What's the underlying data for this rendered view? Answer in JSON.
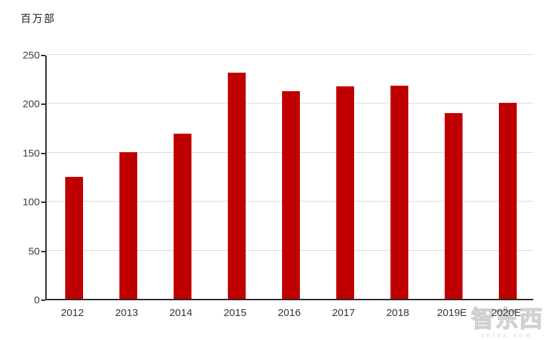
{
  "chart": {
    "unit_label": "百万部",
    "watermark": {
      "text": "智东西",
      "domain": "zhidx.com"
    }
  },
  "chart_data": {
    "type": "bar",
    "title": "",
    "xlabel": "",
    "ylabel": "百万部",
    "categories": [
      "2012",
      "2013",
      "2014",
      "2015",
      "2016",
      "2017",
      "2018",
      "2019E",
      "2020E"
    ],
    "values": [
      125,
      150,
      169,
      231,
      212,
      217,
      218,
      190,
      200
    ],
    "ylim": [
      0,
      250
    ],
    "yticks": [
      0,
      50,
      100,
      150,
      200,
      250
    ],
    "grid": true,
    "legend": "none",
    "bar_color": "#c00000",
    "axis_color": "#262626",
    "gridline_color": "#d9d9d9",
    "tick_label_color": "#3f3f3f"
  }
}
